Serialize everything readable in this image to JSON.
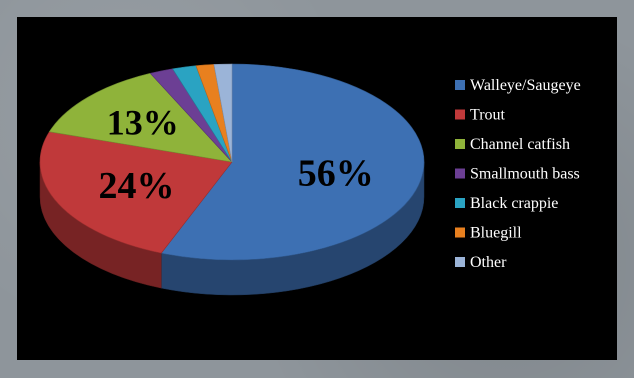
{
  "chart_data": {
    "type": "pie",
    "style": "3d",
    "title": "",
    "labels": [
      "Walleye/Saugeye",
      "Trout",
      "Channel catfish",
      "Smallmouth bass",
      "Black crappie",
      "Bluegill",
      "Other"
    ],
    "values": [
      56,
      24,
      13,
      2,
      2,
      1.5,
      1.5
    ],
    "data_labels": [
      "56%",
      "24%",
      "13%",
      "",
      "",
      "",
      ""
    ],
    "colors": [
      "#3d70b3",
      "#c0393a",
      "#8fb33a",
      "#6c3f94",
      "#2aa3c2",
      "#e8801f",
      "#9bb4d8"
    ],
    "legend_position": "right",
    "background": "#000000"
  }
}
